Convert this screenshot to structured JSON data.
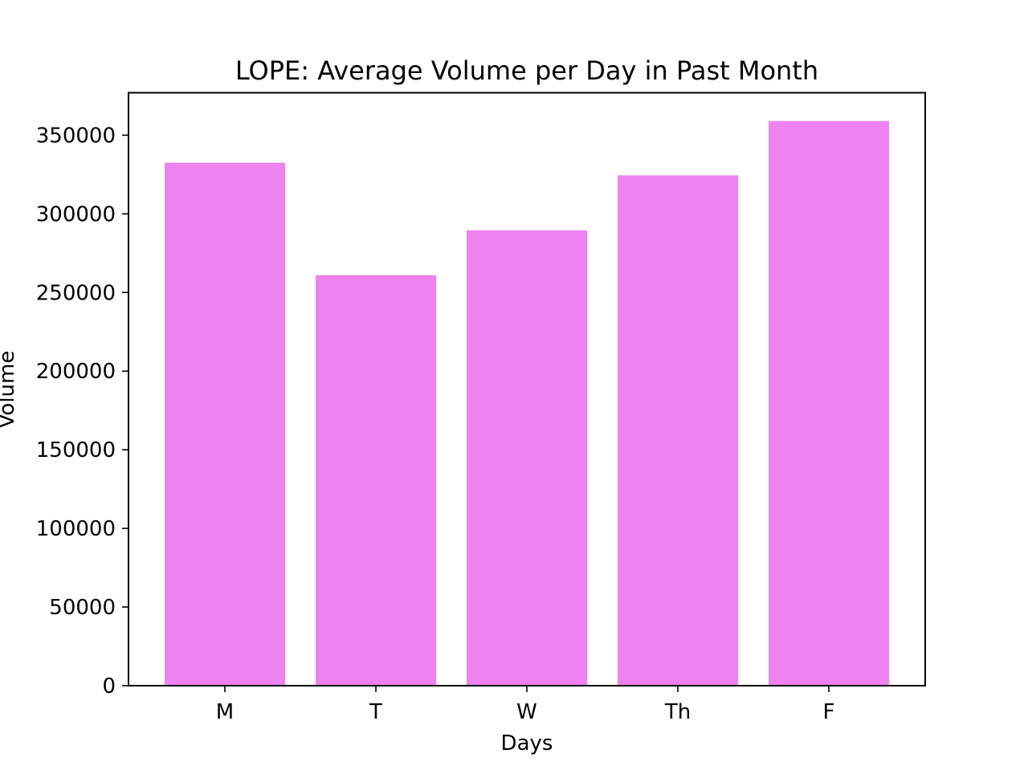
{
  "chart_data": {
    "type": "bar",
    "title": "LOPE: Average Volume per Day in Past Month",
    "xlabel": "Days",
    "ylabel": "Volume",
    "categories": [
      "M",
      "T",
      "W",
      "Th",
      "F"
    ],
    "values": [
      332500,
      261000,
      289500,
      324500,
      359000
    ],
    "ylim": [
      0,
      377000
    ],
    "yticks": [
      0,
      50000,
      100000,
      150000,
      200000,
      250000,
      300000,
      350000
    ],
    "ytick_labels": [
      "0",
      "50000",
      "100000",
      "150000",
      "200000",
      "250000",
      "300000",
      "350000"
    ],
    "bar_color": "#ee82ee",
    "grid": false,
    "legend": "none"
  }
}
